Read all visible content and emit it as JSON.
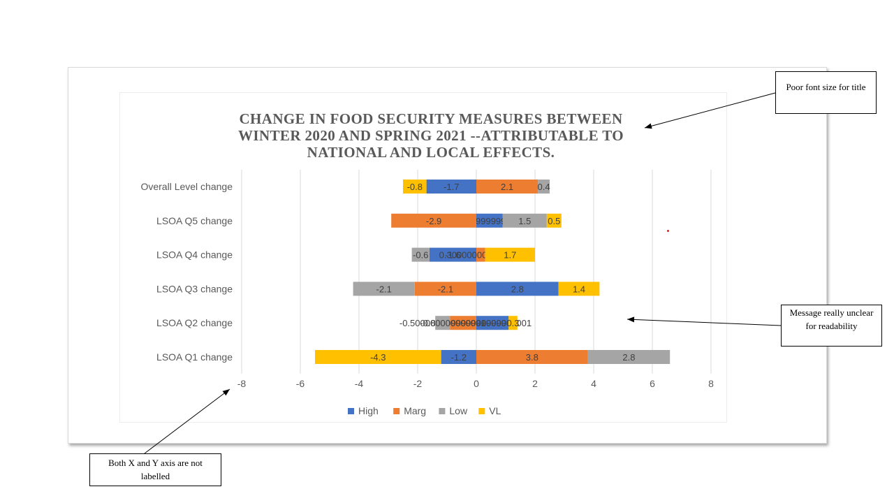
{
  "chart_data": {
    "type": "bar",
    "orientation": "horizontal",
    "stacked": true,
    "title": "CHANGE IN FOOD SECURITY MEASURES  BETWEEN WINTER 2020 AND SPRING 2021 --ATTRIBUTABLE TO NATIONAL AND LOCAL EFFECTS.",
    "title_lines": [
      "CHANGE IN FOOD SECURITY MEASURES  BETWEEN",
      "WINTER 2020 AND SPRING 2021 --ATTRIBUTABLE TO",
      "NATIONAL AND LOCAL EFFECTS."
    ],
    "xlabel": "",
    "ylabel": "",
    "xlim": [
      -8,
      8
    ],
    "xticks": [
      -8,
      -6,
      -4,
      -2,
      0,
      2,
      4,
      6,
      8
    ],
    "grid": true,
    "legend_position": "bottom",
    "categories": [
      "LSOA Q1 change",
      "LSOA Q2 change",
      "LSOA Q3 change",
      "LSOA Q4 change",
      "LSOA Q5 change",
      "Overall Level change"
    ],
    "series": [
      {
        "name": "High",
        "color": "#4472c4",
        "values": [
          -1.2,
          1.1,
          2.8,
          -1.6,
          0.9,
          -1.7
        ],
        "labels": [
          "-1.2",
          "1.10000000000001",
          "2.8",
          "-1.6",
          "0.899999999999999",
          "-1.7"
        ]
      },
      {
        "name": "Marg",
        "color": "#ed7d31",
        "values": [
          3.8,
          -0.9,
          -2.1,
          0.3,
          -2.9,
          2.1
        ],
        "labels": [
          "3.8",
          "-0.899999999999999",
          "-2.1",
          "0.300000000000001",
          "-2.9",
          "2.1"
        ]
      },
      {
        "name": "Low",
        "color": "#a5a5a5",
        "values": [
          2.8,
          -0.5,
          -2.1,
          -0.6,
          1.5,
          0.4
        ],
        "labels": [
          "2.8",
          "-0.500000000000001",
          "-2.1",
          "-0.6",
          "1.5",
          "0.4"
        ]
      },
      {
        "name": "VL",
        "color": "#ffc000",
        "values": [
          -4.3,
          0.3,
          1.4,
          1.7,
          0.5,
          -0.8
        ],
        "labels": [
          "-4.3",
          "0.3",
          "1.4",
          "1.7",
          "0.5",
          "-0.8"
        ]
      }
    ]
  },
  "annotations": {
    "title_note": "Poor font size for title",
    "readability_note": "Message really unclear for readability",
    "axes_note": "Both X and Y axis are not labelled"
  }
}
